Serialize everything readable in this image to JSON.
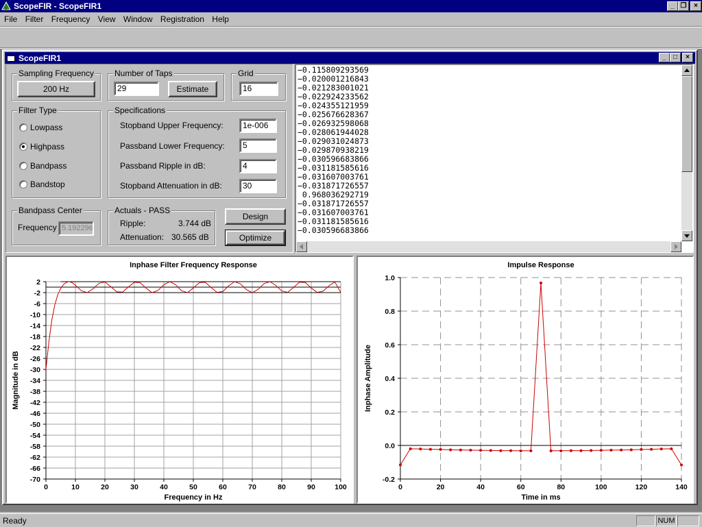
{
  "app": {
    "title": "ScopeFIR - ScopeFIR1",
    "menu": [
      "File",
      "Filter",
      "Frequency",
      "View",
      "Window",
      "Registration",
      "Help"
    ],
    "toolbar_icons": [
      "new-document-icon",
      "open-folder-icon",
      "save-disk-icon",
      "sampling-frequency-icon",
      "sine-wave-icon",
      "grid-icon",
      "eraser-icon",
      "design-filter-icon",
      "optimize-icon",
      "undo-icon",
      "redo-icon",
      "table-view-icon",
      "frequency-response-icon",
      "impulse-response-icon",
      "coefficients-list-icon",
      "cut-icon",
      "copy-icon",
      "paste-icon",
      "print-icon",
      "context-help-icon"
    ],
    "colors": {
      "titlebar": "#000080",
      "desktop": "#808080",
      "plot_line": "#cc0000"
    }
  },
  "child": {
    "title": "ScopeFIR1",
    "sampling": {
      "title": "Sampling Frequency",
      "button": "200 Hz"
    },
    "taps": {
      "title": "Number of Taps",
      "value": "29",
      "button": "Estimate"
    },
    "grid": {
      "title": "Grid",
      "value": "16"
    },
    "filter_type": {
      "title": "Filter Type",
      "options": [
        "Lowpass",
        "Highpass",
        "Bandpass",
        "Bandstop"
      ],
      "selected": "Highpass"
    },
    "specs": {
      "title": "Specifications",
      "rows": [
        {
          "label": "Stopband Upper Frequency:",
          "value": "1e-006"
        },
        {
          "label": "Passband Lower Frequency:",
          "value": "5"
        },
        {
          "label": "Passband Ripple in dB:",
          "value": "4"
        },
        {
          "label": "Stopband Attenuation in dB:",
          "value": "30"
        }
      ]
    },
    "bandpass_center": {
      "title": "Bandpass Center",
      "label": "Frequency",
      "value": "5.192296"
    },
    "actuals": {
      "title": "Actuals - PASS",
      "ripple_label": "Ripple:",
      "ripple_value": "3.744 dB",
      "atten_label": "Attenuation:",
      "atten_value": "30.565 dB"
    },
    "buttons": {
      "design": "Design",
      "optimize": "Optimize"
    },
    "coefficients": [
      "−0.115809293569",
      "−0.020001216843",
      "−0.021283001021",
      "−0.022924233562",
      "−0.024355121959",
      "−0.025676628367",
      "−0.026932598068",
      "−0.028061944028",
      "−0.029031024873",
      "−0.029870938219",
      "−0.030596683866",
      "−0.031181585616",
      "−0.031607003761",
      "−0.031871726557",
      " 0.968036292719",
      "−0.031871726557",
      "−0.031607003761",
      "−0.031181585616",
      "−0.030596683866"
    ]
  },
  "status": {
    "text": "Ready",
    "num": "NUM"
  },
  "chart_data": [
    {
      "type": "line",
      "title": "Inphase Filter Frequency Response",
      "xlabel": "Frequency in Hz",
      "ylabel": "Magnitude in dB",
      "xlim": [
        0,
        100
      ],
      "ylim": [
        -70,
        2
      ],
      "xticks": [
        0,
        10,
        20,
        30,
        40,
        50,
        60,
        70,
        80,
        90,
        100
      ],
      "yticks": [
        2,
        -2,
        -6,
        -10,
        -14,
        -18,
        -22,
        -26,
        -30,
        -34,
        -38,
        -42,
        -46,
        -50,
        -54,
        -58,
        -62,
        -66,
        -70
      ],
      "grid": true,
      "limit_lines": [
        2,
        -2
      ],
      "x": [
        0,
        1,
        2,
        3,
        4,
        5,
        6,
        7,
        8,
        9,
        10,
        12,
        14,
        16,
        18,
        20,
        22,
        24,
        26,
        28,
        30,
        32,
        34,
        36,
        38,
        40,
        42,
        44,
        46,
        48,
        50,
        52,
        54,
        56,
        58,
        60,
        62,
        64,
        66,
        68,
        70,
        72,
        74,
        76,
        78,
        80,
        82,
        84,
        86,
        88,
        90,
        92,
        94,
        96,
        98,
        100
      ],
      "y": [
        -30,
        -20,
        -12,
        -6.5,
        -2.8,
        -0.5,
        1.0,
        1.8,
        2.0,
        1.6,
        0.7,
        -1.3,
        -2.0,
        -0.6,
        1.4,
        1.9,
        0.2,
        -1.7,
        -1.8,
        0.1,
        1.8,
        1.6,
        -0.4,
        -2.0,
        -1.2,
        0.9,
        2.0,
        0.9,
        -1.3,
        -2.0,
        -0.3,
        1.6,
        1.8,
        -0.1,
        -1.9,
        -1.6,
        0.5,
        2.0,
        1.2,
        -0.9,
        -2.0,
        -0.8,
        1.3,
        2.0,
        0.6,
        -1.4,
        -1.9,
        -0.1,
        1.8,
        1.7,
        -0.3,
        -1.9,
        -1.5,
        0.5,
        1.9,
        -1.9
      ]
    },
    {
      "type": "line",
      "title": "Impulse Response",
      "xlabel": "Time in ms",
      "ylabel": "Inphase Amplitude",
      "xlim": [
        0,
        140
      ],
      "ylim": [
        -0.2,
        1.0
      ],
      "xticks": [
        0,
        20,
        40,
        60,
        80,
        100,
        120,
        140
      ],
      "yticks": [
        1.0,
        0.8,
        0.6,
        0.4,
        0.2,
        0.0,
        -0.2
      ],
      "ytick_labels": [
        "1.0",
        "0.8",
        "0.6",
        "0.4",
        "0.2",
        "0.0",
        "-0.2"
      ],
      "grid": true,
      "x": [
        0,
        5,
        10,
        15,
        20,
        25,
        30,
        35,
        40,
        45,
        50,
        55,
        60,
        65,
        70,
        75,
        80,
        85,
        90,
        95,
        100,
        105,
        110,
        115,
        120,
        125,
        130,
        135,
        140
      ],
      "y": [
        -0.116,
        -0.02,
        -0.021,
        -0.023,
        -0.024,
        -0.026,
        -0.027,
        -0.028,
        -0.029,
        -0.03,
        -0.031,
        -0.031,
        -0.032,
        -0.032,
        0.968,
        -0.032,
        -0.032,
        -0.031,
        -0.031,
        -0.03,
        -0.029,
        -0.028,
        -0.027,
        -0.026,
        -0.024,
        -0.023,
        -0.021,
        -0.02,
        -0.116
      ]
    }
  ]
}
